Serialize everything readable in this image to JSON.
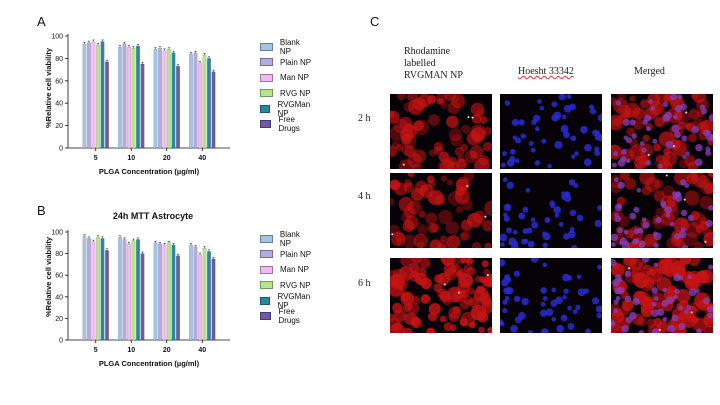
{
  "panel_labels": {
    "a": "A",
    "b": "B",
    "c": "C"
  },
  "colors": {
    "blank": "#a4c2e4",
    "plain": "#b5a9e0",
    "man": "#f4b9f0",
    "rvg": "#b7e48e",
    "rvgman": "#27899e",
    "free": "#6c5aa4",
    "rhodamine": "#c51414",
    "hoechst": "#2a2bd0",
    "merged": "#a61c5f"
  },
  "chart_data": [
    {
      "type": "bar",
      "title": "",
      "xlabel": "PLGA Concentration (µg/ml)",
      "ylabel": "%Relative cell viability",
      "ylim": [
        0,
        100
      ],
      "yticks": [
        "0",
        "20",
        "40",
        "60",
        "80",
        "100"
      ],
      "categories": [
        "5",
        "10",
        "20",
        "40"
      ],
      "legend_position": "right",
      "series": [
        {
          "name": "Blank NP",
          "color_key": "blank",
          "values": [
            93,
            90,
            88,
            84
          ],
          "errors": [
            1.5,
            1.5,
            1.5,
            1.5
          ]
        },
        {
          "name": "Plain NP",
          "color_key": "plain",
          "values": [
            94,
            93,
            89,
            85
          ],
          "errors": [
            1.5,
            1.5,
            1.5,
            1.5
          ]
        },
        {
          "name": "Man NP",
          "color_key": "man",
          "values": [
            95,
            90,
            87,
            76
          ],
          "errors": [
            1.5,
            1.5,
            1.5,
            1.5
          ]
        },
        {
          "name": "RVG NP",
          "color_key": "rvg",
          "values": [
            92,
            89,
            88,
            83
          ],
          "errors": [
            1.5,
            1.5,
            1.5,
            1.5
          ]
        },
        {
          "name": "RVGMan NP",
          "color_key": "rvgman",
          "values": [
            95,
            91,
            85,
            80
          ],
          "errors": [
            1.5,
            1.5,
            1.5,
            1.5
          ]
        },
        {
          "name": "Free Drugs",
          "color_key": "free",
          "values": [
            77,
            75,
            73,
            68
          ],
          "errors": [
            1.5,
            1.5,
            1.5,
            1.5
          ]
        }
      ]
    },
    {
      "type": "bar",
      "title": "24h MTT Astrocyte",
      "xlabel": "PLGA Concentration (µg/ml)",
      "ylabel": "%Relative cell viability",
      "ylim": [
        0,
        100
      ],
      "yticks": [
        "0",
        "20",
        "40",
        "60",
        "80",
        "100"
      ],
      "categories": [
        "5",
        "10",
        "20",
        "40"
      ],
      "legend_position": "right",
      "series": [
        {
          "name": "Blank NP",
          "color_key": "blank",
          "values": [
            96,
            95,
            90,
            88
          ],
          "errors": [
            1.5,
            1.5,
            1.5,
            1.5
          ]
        },
        {
          "name": "Plain NP",
          "color_key": "plain",
          "values": [
            94,
            93,
            89,
            86
          ],
          "errors": [
            1.5,
            1.5,
            1.5,
            1.5
          ]
        },
        {
          "name": "Man NP",
          "color_key": "man",
          "values": [
            91,
            89,
            88,
            79
          ],
          "errors": [
            1.5,
            1.5,
            1.5,
            1.5
          ]
        },
        {
          "name": "RVG NP",
          "color_key": "rvg",
          "values": [
            95,
            92,
            90,
            85
          ],
          "errors": [
            1.5,
            1.5,
            1.5,
            1.5
          ]
        },
        {
          "name": "RVGMan NP",
          "color_key": "rvgman",
          "values": [
            94,
            93,
            88,
            82
          ],
          "errors": [
            1.5,
            1.5,
            1.5,
            1.5
          ]
        },
        {
          "name": "Free Drugs",
          "color_key": "free",
          "values": [
            83,
            80,
            78,
            75
          ],
          "errors": [
            1.5,
            1.5,
            1.5,
            1.5
          ]
        }
      ]
    }
  ],
  "microscopy": {
    "columns": [
      {
        "label": "Rhodamine\nlabelled\nRVGMAN NP",
        "channel": "rhodamine"
      },
      {
        "label": "Hoesht 33342",
        "channel": "hoechst"
      },
      {
        "label": "Merged",
        "channel": "merged"
      }
    ],
    "rows": [
      "2 h",
      "4 h",
      "6 h"
    ]
  }
}
